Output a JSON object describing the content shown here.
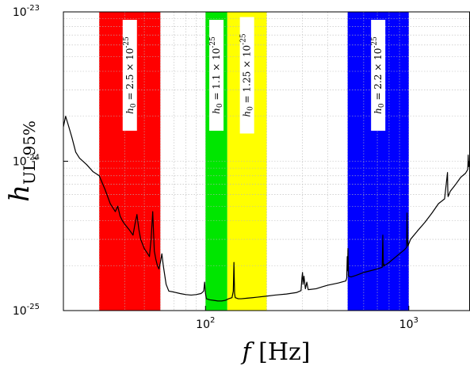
{
  "chart_data": {
    "type": "line",
    "title": "",
    "xlabel": "f [Hz]",
    "ylabel": "h_UL,95%",
    "xscale": "log",
    "yscale": "log",
    "xlim": [
      20,
      2000
    ],
    "ylim": [
      1e-25,
      1e-23
    ],
    "grid": true,
    "x_ticks": [
      100,
      1000
    ],
    "x_tick_labels": [
      "10^2",
      "10^3"
    ],
    "y_ticks": [
      1e-25,
      1e-24,
      1e-23
    ],
    "y_tick_labels": [
      "10^-25",
      "10^-24",
      "10^-23"
    ],
    "bands": [
      {
        "x_range": [
          30,
          60
        ],
        "color": "#ff0000",
        "label": "h_0 = 2.5 × 10^-25"
      },
      {
        "x_range": [
          100,
          128
        ],
        "color": "#00e600",
        "label": "h_0 = 1.1 × 10^-25"
      },
      {
        "x_range": [
          128,
          200
        ],
        "color": "#ffff00",
        "label": "h_0 = 1.25 × 10^-25"
      },
      {
        "x_range": [
          500,
          1000
        ],
        "color": "#0000ff",
        "label": "h_0 = 2.2 × 10^-25"
      }
    ],
    "series": [
      {
        "color": "#000000",
        "x": [
          20,
          20.5,
          21,
          22,
          23,
          24,
          26,
          28,
          30,
          32,
          34,
          36,
          37,
          38,
          39,
          40,
          42,
          44,
          45,
          46,
          47,
          48,
          50,
          52,
          53,
          54,
          55,
          56,
          57,
          58,
          59,
          60,
          61,
          62,
          64,
          66,
          70,
          75,
          80,
          85,
          90,
          95,
          98,
          99,
          100,
          101,
          105,
          110,
          115,
          120,
          125,
          130,
          135,
          137,
          138,
          139,
          140,
          145,
          150,
          160,
          170,
          180,
          200,
          220,
          250,
          280,
          295,
          298,
          300,
          302,
          305,
          310,
          315,
          320,
          350,
          380,
          400,
          420,
          450,
          490,
          495,
          498,
          500,
          502,
          505,
          520,
          550,
          600,
          650,
          700,
          740,
          745,
          750,
          755,
          760,
          800,
          850,
          900,
          950,
          975,
          980,
          985,
          990,
          1000,
          1020,
          1100,
          1200,
          1300,
          1400,
          1500,
          1550,
          1555,
          1560,
          1570,
          1600,
          1700,
          1800,
          1900,
          1950,
          1960,
          1970,
          1980,
          2000
        ],
        "y": [
          1.7e-24,
          2e-24,
          1.8e-24,
          1.45e-24,
          1.15e-24,
          1.05e-24,
          9.5e-25,
          8.5e-25,
          8e-25,
          6.5e-25,
          5.2e-25,
          4.6e-25,
          5e-25,
          4.3e-25,
          4e-25,
          3.8e-25,
          3.5e-25,
          3.2e-25,
          3.8e-25,
          4.4e-25,
          3.5e-25,
          3e-25,
          2.6e-25,
          2.4e-25,
          2.3e-25,
          3e-25,
          4.6e-25,
          2.5e-25,
          2.2e-25,
          2e-25,
          1.9e-25,
          2.1e-25,
          2.4e-25,
          2e-25,
          1.5e-25,
          1.35e-25,
          1.33e-25,
          1.3e-25,
          1.28e-25,
          1.27e-25,
          1.28e-25,
          1.3e-25,
          1.35e-25,
          1.55e-25,
          1.3e-25,
          1.2e-25,
          1.18e-25,
          1.17e-25,
          1.16e-25,
          1.16e-25,
          1.17e-25,
          1.2e-25,
          1.22e-25,
          1.35e-25,
          2.1e-25,
          1.3e-25,
          1.22e-25,
          1.2e-25,
          1.2e-25,
          1.21e-25,
          1.22e-25,
          1.23e-25,
          1.25e-25,
          1.27e-25,
          1.29e-25,
          1.32e-25,
          1.36e-25,
          1.65e-25,
          1.8e-25,
          1.5e-25,
          1.7e-25,
          1.4e-25,
          1.55e-25,
          1.38e-25,
          1.4e-25,
          1.45e-25,
          1.48e-25,
          1.5e-25,
          1.53e-25,
          1.58e-25,
          1.65e-25,
          2.3e-25,
          1.85e-25,
          2.6e-25,
          1.7e-25,
          1.68e-25,
          1.72e-25,
          1.8e-25,
          1.85e-25,
          1.9e-25,
          1.95e-25,
          3.2e-25,
          1.98e-25,
          2.05e-25,
          2e-25,
          2.1e-25,
          2.25e-25,
          2.4e-25,
          2.55e-25,
          2.65e-25,
          4.5e-25,
          3e-25,
          2.7e-25,
          2.8e-25,
          3e-25,
          3.4e-25,
          3.9e-25,
          4.5e-25,
          5.2e-25,
          5.6e-25,
          8.4e-25,
          6.5e-25,
          5.8e-25,
          5.9e-25,
          6.3e-25,
          7e-25,
          7.8e-25,
          8.3e-25,
          8.8e-25,
          1.1e-24,
          9.2e-25,
          9.8e-25,
          1.02e-24
        ]
      }
    ]
  }
}
